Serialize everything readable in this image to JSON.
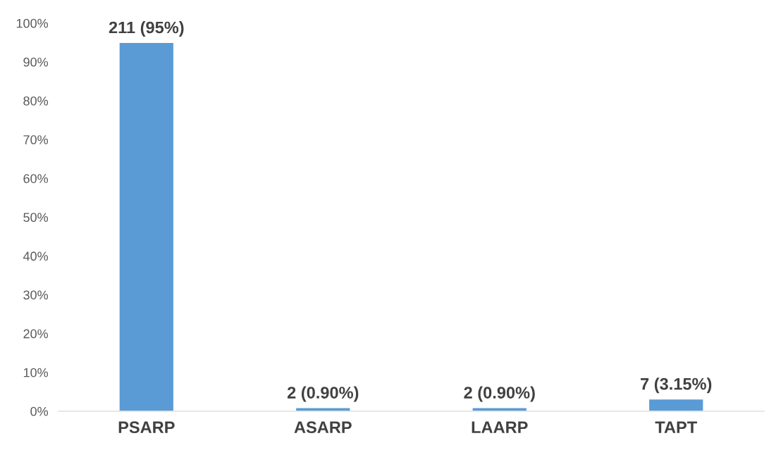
{
  "chart_data": {
    "type": "bar",
    "categories": [
      "PSARP",
      "ASARP",
      "LAARP",
      "TAPT"
    ],
    "values": [
      95,
      0.9,
      0.9,
      3.15
    ],
    "value_labels": [
      "211 (95%)",
      "2 (0.90%)",
      "2 (0.90%)",
      "7 (3.15%)"
    ],
    "color": "#5b9bd5",
    "ylim": [
      0,
      100
    ],
    "yticks": [
      {
        "value": 0,
        "label": "0%"
      },
      {
        "value": 10,
        "label": "10%"
      },
      {
        "value": 20,
        "label": "20%"
      },
      {
        "value": 30,
        "label": "30%"
      },
      {
        "value": 40,
        "label": "40%"
      },
      {
        "value": 50,
        "label": "50%"
      },
      {
        "value": 60,
        "label": "60%"
      },
      {
        "value": 70,
        "label": "70%"
      },
      {
        "value": 80,
        "label": "80%"
      },
      {
        "value": 90,
        "label": "90%"
      },
      {
        "value": 100,
        "label": "100%"
      }
    ],
    "grid": false,
    "legend": false
  }
}
